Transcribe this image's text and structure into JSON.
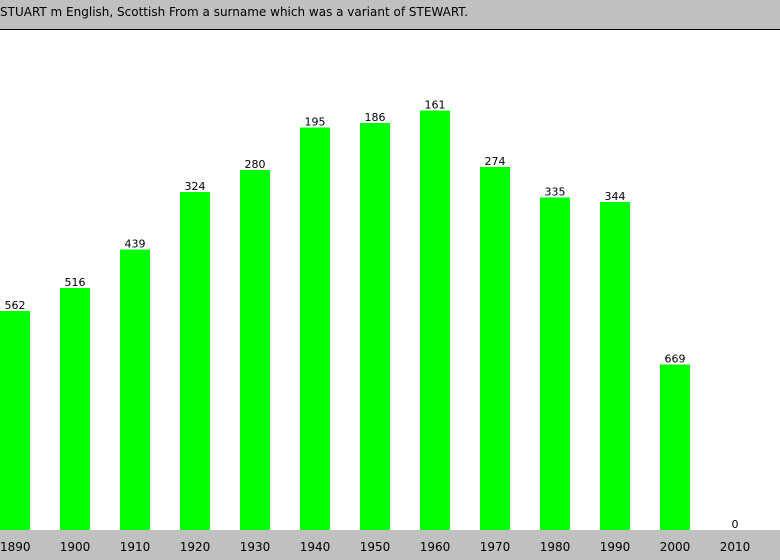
{
  "header": {
    "text": "STUART m English, Scottish From a surname which was a variant of STEWART."
  },
  "colors": {
    "bar": "#00ff00",
    "background": "#ffffff",
    "strip": "#c0c0c0"
  },
  "chart_data": {
    "type": "bar",
    "title": "",
    "xlabel": "",
    "ylabel": "",
    "categories": [
      "1890",
      "1900",
      "1910",
      "1920",
      "1930",
      "1940",
      "1950",
      "1960",
      "1970",
      "1980",
      "1990",
      "2000",
      "2010"
    ],
    "values": [
      562,
      516,
      439,
      324,
      280,
      195,
      186,
      161,
      274,
      335,
      344,
      669,
      0
    ],
    "value_meaning": "popularity rank (lower rank = taller bar; 0 = unranked)",
    "grid": false,
    "legend": "none"
  }
}
